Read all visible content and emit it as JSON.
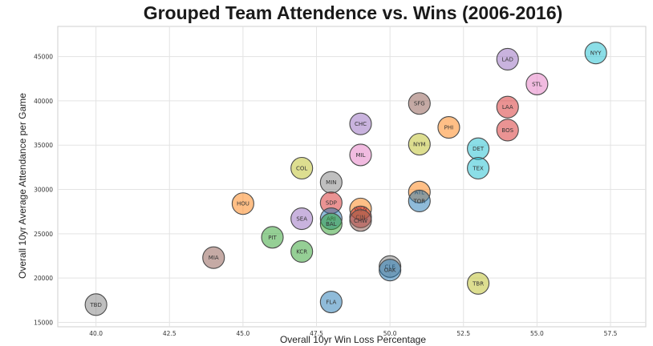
{
  "chart_data": {
    "type": "scatter",
    "title": "Grouped Team Attendence vs. Wins (2006-2016)",
    "xlabel": "Overall 10yr Win Loss Percentage",
    "ylabel": "Overall 10yr Average Attendance per Game",
    "xlim": [
      38.7,
      58.7
    ],
    "ylim": [
      14500,
      48400
    ],
    "xticks": [
      "40.0",
      "42.5",
      "45.0",
      "47.5",
      "50.0",
      "52.5",
      "55.0",
      "57.5"
    ],
    "xtick_values": [
      40.0,
      42.5,
      45.0,
      47.5,
      50.0,
      52.5,
      55.0,
      57.5
    ],
    "yticks": [
      "15000",
      "20000",
      "25000",
      "30000",
      "35000",
      "40000",
      "45000"
    ],
    "ytick_values": [
      15000,
      20000,
      25000,
      30000,
      35000,
      40000,
      45000
    ],
    "grid": true,
    "points": [
      {
        "label": "NYY",
        "x": 57.0,
        "y": 45400,
        "color": "#17becf"
      },
      {
        "label": "LAD",
        "x": 54.0,
        "y": 44700,
        "color": "#9467bd"
      },
      {
        "label": "STL",
        "x": 55.0,
        "y": 41900,
        "color": "#e377c2"
      },
      {
        "label": "SFG",
        "x": 51.0,
        "y": 39700,
        "color": "#8c564b"
      },
      {
        "label": "LAA",
        "x": 54.0,
        "y": 39300,
        "color": "#d62728"
      },
      {
        "label": "CHC",
        "x": 49.0,
        "y": 37400,
        "color": "#9467bd"
      },
      {
        "label": "PHI",
        "x": 52.0,
        "y": 37000,
        "color": "#ff7f0e"
      },
      {
        "label": "BOS",
        "x": 54.0,
        "y": 36700,
        "color": "#d62728"
      },
      {
        "label": "NYM",
        "x": 51.0,
        "y": 35100,
        "color": "#bcbd22"
      },
      {
        "label": "DET",
        "x": 53.0,
        "y": 34600,
        "color": "#17becf"
      },
      {
        "label": "MIL",
        "x": 49.0,
        "y": 33900,
        "color": "#e377c2"
      },
      {
        "label": "COL",
        "x": 47.0,
        "y": 32400,
        "color": "#bcbd22"
      },
      {
        "label": "TEX",
        "x": 53.0,
        "y": 32400,
        "color": "#17becf"
      },
      {
        "label": "MIN",
        "x": 48.0,
        "y": 30800,
        "color": "#7f7f7f"
      },
      {
        "label": "ATL",
        "x": 51.0,
        "y": 29700,
        "color": "#ff7f0e"
      },
      {
        "label": "TOR",
        "x": 51.0,
        "y": 28700,
        "color": "#1f77b4"
      },
      {
        "label": "SDP",
        "x": 48.0,
        "y": 28500,
        "color": "#d62728"
      },
      {
        "label": "HOU",
        "x": 45.0,
        "y": 28400,
        "color": "#ff7f0e"
      },
      {
        "label": "WSN",
        "x": 49.0,
        "y": 27800,
        "color": "#ff7f0e"
      },
      {
        "label": "CIN",
        "x": 49.0,
        "y": 26900,
        "color": "#d62728"
      },
      {
        "label": "SEA",
        "x": 47.0,
        "y": 26700,
        "color": "#9467bd"
      },
      {
        "label": "ARI",
        "x": 48.0,
        "y": 26700,
        "color": "#1f77b4"
      },
      {
        "label": "CHW",
        "x": 49.0,
        "y": 26500,
        "color": "#8c564b"
      },
      {
        "label": "BAL",
        "x": 48.0,
        "y": 26100,
        "color": "#2ca02c"
      },
      {
        "label": "PIT",
        "x": 46.0,
        "y": 24600,
        "color": "#2ca02c"
      },
      {
        "label": "KCR",
        "x": 47.0,
        "y": 23000,
        "color": "#2ca02c"
      },
      {
        "label": "MIA",
        "x": 44.0,
        "y": 22300,
        "color": "#8c564b"
      },
      {
        "label": "CLE",
        "x": 50.0,
        "y": 21300,
        "color": "#7f7f7f"
      },
      {
        "label": "OAK",
        "x": 50.0,
        "y": 20900,
        "color": "#1f77b4"
      },
      {
        "label": "TBR",
        "x": 53.0,
        "y": 19400,
        "color": "#bcbd22"
      },
      {
        "label": "FLA",
        "x": 48.0,
        "y": 17300,
        "color": "#1f77b4"
      },
      {
        "label": "TBD",
        "x": 40.0,
        "y": 17000,
        "color": "#7f7f7f"
      }
    ]
  }
}
